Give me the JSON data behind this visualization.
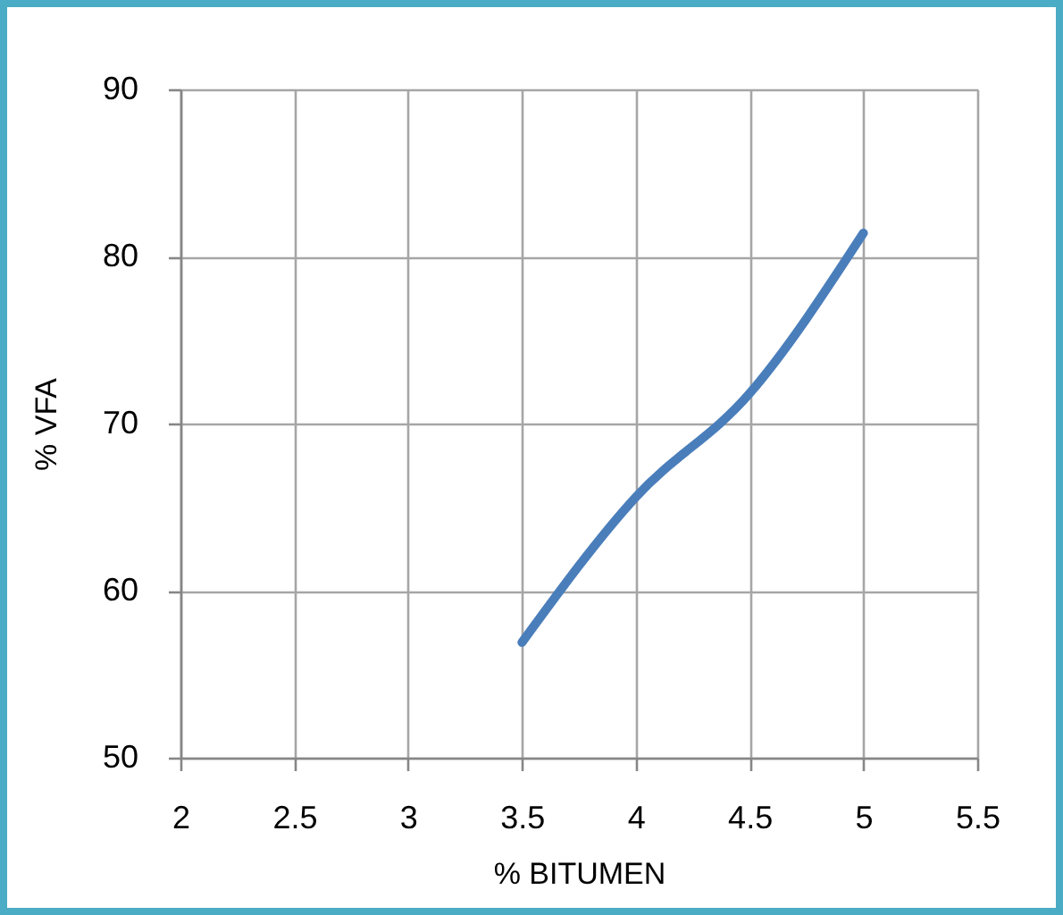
{
  "chart_data": {
    "type": "line",
    "xlabel": "% BITUMEN",
    "ylabel": "% VFA",
    "x": [
      3.5,
      4,
      4.5,
      5
    ],
    "series": [
      {
        "color": "#4a7ebb",
        "values": [
          56.9,
          65.6,
          71.8,
          81.4
        ]
      }
    ],
    "xlim": [
      2,
      5.5
    ],
    "xticks": [
      2,
      2.5,
      3,
      3.5,
      4,
      4.5,
      5,
      5.5
    ],
    "ylim": [
      50,
      90
    ],
    "yticks": [
      50,
      60,
      70,
      80,
      90
    ],
    "grid": true,
    "line_style": "solid"
  }
}
